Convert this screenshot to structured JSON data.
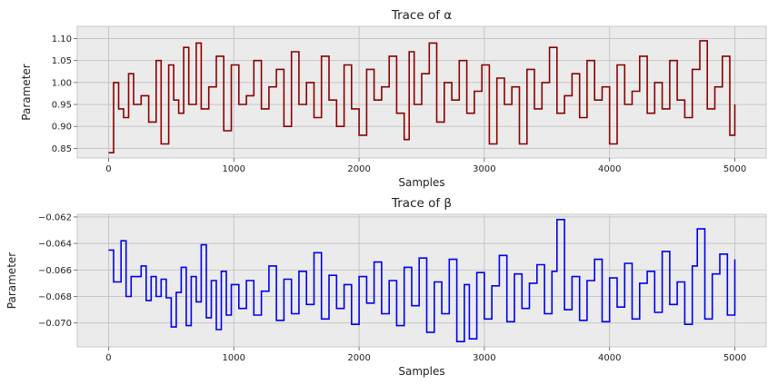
{
  "chart_data": [
    {
      "type": "line",
      "title": "Trace of α",
      "xlabel": "Samples",
      "ylabel": "Parameter",
      "xlim": [
        -250,
        5250
      ],
      "ylim": [
        0.828,
        1.128
      ],
      "xticks": [
        0,
        1000,
        2000,
        3000,
        4000,
        5000
      ],
      "xtick_labels": [
        "0",
        "1000",
        "2000",
        "3000",
        "4000",
        "5000"
      ],
      "yticks": [
        0.85,
        0.9,
        0.95,
        1.0,
        1.05,
        1.1
      ],
      "ytick_labels": [
        "0.85",
        "0.90",
        "0.95",
        "1.00",
        "1.05",
        "1.10"
      ],
      "grid": true,
      "series": [
        {
          "color": "#8b0000",
          "x": [
            0,
            40,
            80,
            120,
            160,
            200,
            260,
            320,
            380,
            420,
            480,
            520,
            560,
            600,
            640,
            700,
            740,
            800,
            860,
            920,
            980,
            1040,
            1100,
            1160,
            1220,
            1280,
            1340,
            1400,
            1460,
            1520,
            1580,
            1640,
            1700,
            1760,
            1820,
            1880,
            1940,
            2000,
            2060,
            2120,
            2180,
            2240,
            2300,
            2360,
            2400,
            2440,
            2500,
            2560,
            2620,
            2680,
            2740,
            2800,
            2860,
            2920,
            2980,
            3040,
            3100,
            3160,
            3220,
            3280,
            3340,
            3400,
            3460,
            3520,
            3580,
            3640,
            3700,
            3760,
            3820,
            3880,
            3940,
            4000,
            4060,
            4120,
            4180,
            4240,
            4300,
            4360,
            4420,
            4480,
            4540,
            4600,
            4660,
            4720,
            4780,
            4840,
            4900,
            4960,
            5000
          ],
          "values": [
            0.84,
            1.0,
            0.94,
            0.92,
            1.02,
            0.95,
            0.97,
            0.91,
            1.05,
            0.86,
            1.04,
            0.96,
            0.93,
            1.08,
            0.95,
            1.09,
            0.94,
            0.99,
            1.06,
            0.89,
            1.04,
            0.95,
            0.97,
            1.05,
            0.94,
            0.99,
            1.03,
            0.9,
            1.07,
            0.95,
            1.0,
            0.92,
            1.06,
            0.96,
            0.9,
            1.04,
            0.94,
            0.88,
            1.03,
            0.96,
            0.99,
            1.06,
            0.93,
            0.87,
            1.07,
            0.95,
            1.02,
            1.09,
            0.91,
            1.0,
            0.96,
            1.05,
            0.93,
            0.98,
            1.04,
            0.86,
            1.01,
            0.95,
            0.99,
            0.86,
            1.03,
            0.94,
            1.0,
            1.08,
            0.93,
            0.97,
            1.02,
            0.92,
            1.05,
            0.96,
            0.99,
            0.86,
            1.04,
            0.95,
            0.98,
            1.06,
            0.93,
            1.0,
            0.94,
            1.05,
            0.96,
            0.92,
            1.03,
            1.095,
            0.94,
            0.99,
            1.06,
            0.88,
            0.95
          ]
        }
      ]
    },
    {
      "type": "line",
      "title": "Trace of β",
      "xlabel": "Samples",
      "ylabel": "Parameter",
      "xlim": [
        -250,
        5250
      ],
      "ylim": [
        -0.0718,
        -0.0618
      ],
      "xticks": [
        0,
        1000,
        2000,
        3000,
        4000,
        5000
      ],
      "xtick_labels": [
        "0",
        "1000",
        "2000",
        "3000",
        "4000",
        "5000"
      ],
      "yticks": [
        -0.07,
        -0.068,
        -0.066,
        -0.064,
        -0.062
      ],
      "ytick_labels": [
        "−0.070",
        "−0.068",
        "−0.066",
        "−0.064",
        "−0.062"
      ],
      "grid": true,
      "series": [
        {
          "color": "#0000ee",
          "x": [
            0,
            20,
            40,
            80,
            100,
            140,
            180,
            220,
            260,
            300,
            340,
            380,
            420,
            460,
            500,
            540,
            580,
            620,
            660,
            700,
            740,
            780,
            820,
            860,
            900,
            940,
            980,
            1040,
            1100,
            1160,
            1220,
            1280,
            1340,
            1400,
            1460,
            1520,
            1580,
            1640,
            1700,
            1760,
            1820,
            1880,
            1940,
            2000,
            2060,
            2120,
            2180,
            2240,
            2300,
            2360,
            2420,
            2480,
            2540,
            2600,
            2660,
            2720,
            2780,
            2840,
            2880,
            2940,
            3000,
            3060,
            3120,
            3180,
            3240,
            3300,
            3360,
            3420,
            3480,
            3540,
            3580,
            3640,
            3700,
            3760,
            3820,
            3880,
            3940,
            4000,
            4060,
            4120,
            4180,
            4240,
            4300,
            4360,
            4420,
            4480,
            4540,
            4600,
            4660,
            4700,
            4760,
            4820,
            4880,
            4940,
            5000
          ],
          "values": [
            -0.0645,
            -0.0645,
            -0.0669,
            -0.0669,
            -0.0638,
            -0.068,
            -0.0665,
            -0.0665,
            -0.0657,
            -0.0683,
            -0.0665,
            -0.068,
            -0.0667,
            -0.0681,
            -0.0703,
            -0.0677,
            -0.0658,
            -0.0702,
            -0.0665,
            -0.0684,
            -0.0641,
            -0.0696,
            -0.0668,
            -0.0705,
            -0.0661,
            -0.0694,
            -0.0671,
            -0.0689,
            -0.0668,
            -0.0694,
            -0.0676,
            -0.0657,
            -0.0698,
            -0.0667,
            -0.0693,
            -0.0661,
            -0.0686,
            -0.0647,
            -0.0697,
            -0.0664,
            -0.0689,
            -0.0671,
            -0.0701,
            -0.0665,
            -0.0685,
            -0.0654,
            -0.0693,
            -0.0668,
            -0.0702,
            -0.0658,
            -0.0687,
            -0.0651,
            -0.0707,
            -0.0669,
            -0.0693,
            -0.0652,
            -0.0714,
            -0.0671,
            -0.0712,
            -0.0662,
            -0.0697,
            -0.0672,
            -0.0649,
            -0.0699,
            -0.0663,
            -0.0689,
            -0.067,
            -0.0656,
            -0.0693,
            -0.0661,
            -0.0622,
            -0.069,
            -0.0665,
            -0.0698,
            -0.0668,
            -0.0652,
            -0.0699,
            -0.0666,
            -0.0688,
            -0.0655,
            -0.0697,
            -0.067,
            -0.0661,
            -0.0692,
            -0.0646,
            -0.0686,
            -0.0669,
            -0.0701,
            -0.0657,
            -0.0629,
            -0.0697,
            -0.0663,
            -0.0648,
            -0.0694,
            -0.0652
          ]
        }
      ]
    }
  ]
}
